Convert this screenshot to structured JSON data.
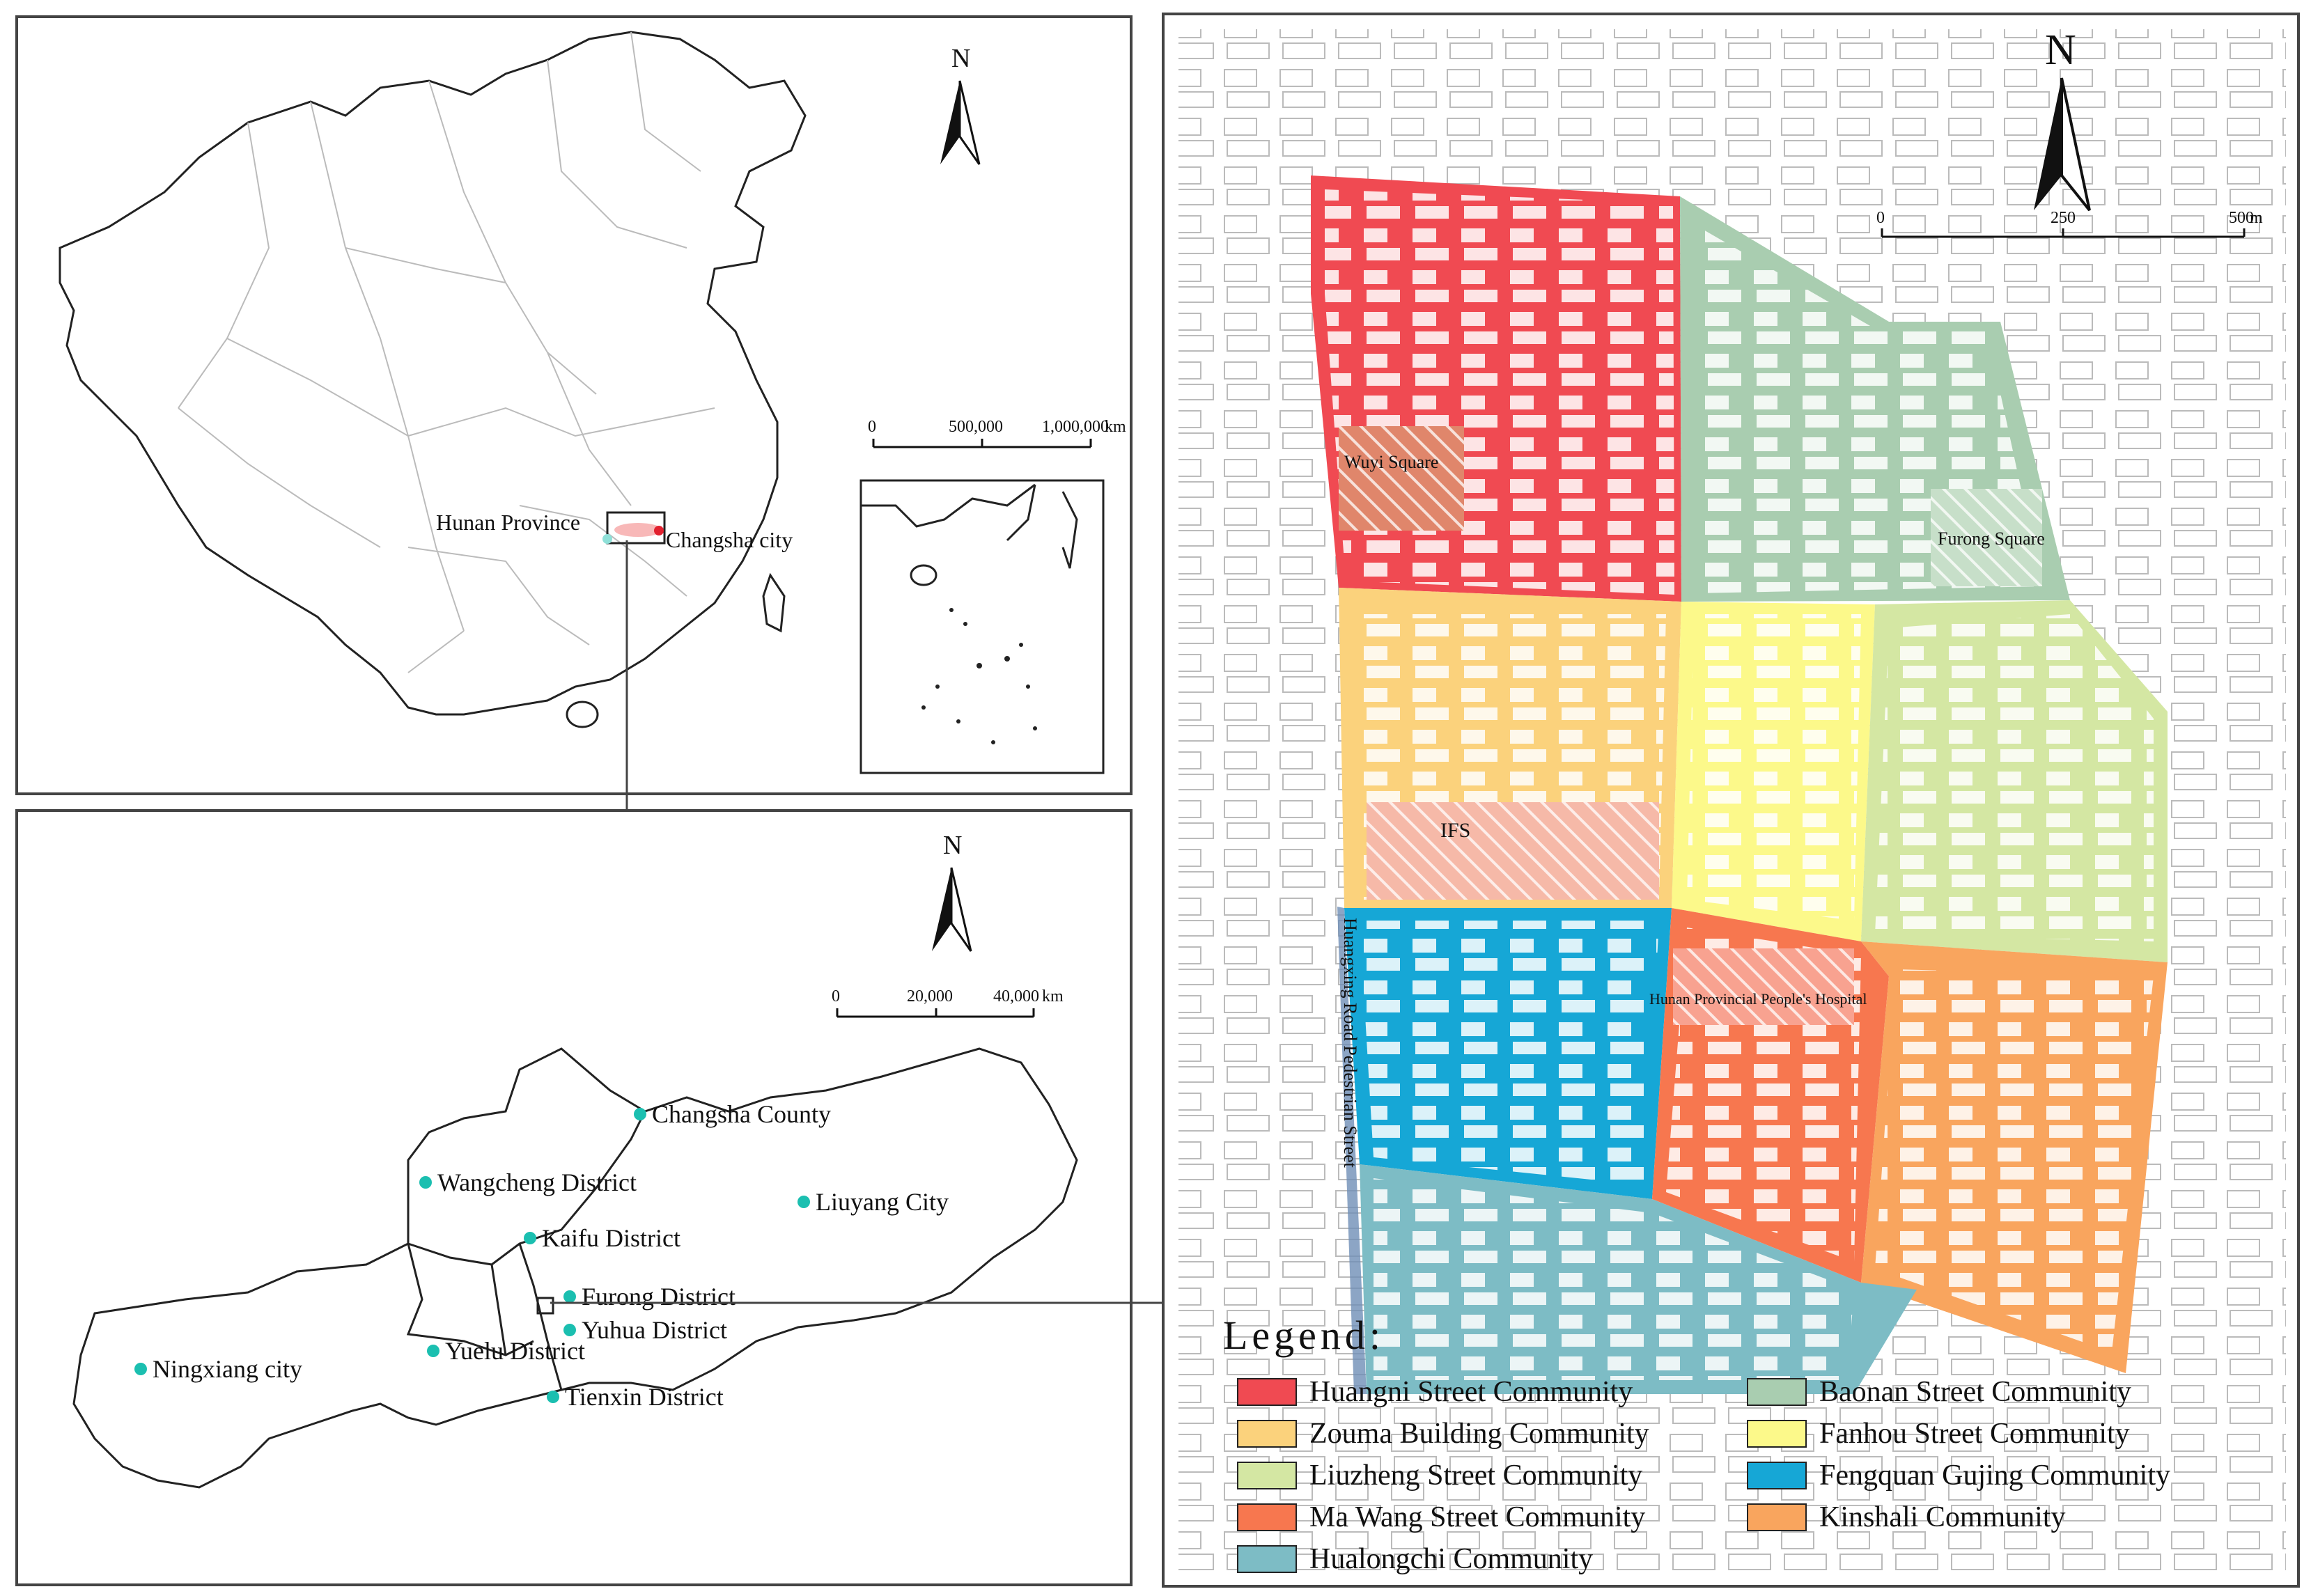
{
  "north_symbol": "N",
  "panel_china": {
    "scale_ticks": [
      "0",
      "500,000",
      "1,000,000"
    ],
    "scale_unit": "km",
    "labels": {
      "hunan": "Hunan Province",
      "changsha": "Changsha city"
    }
  },
  "panel_changsha": {
    "scale_ticks": [
      "0",
      "20,000",
      "40,000"
    ],
    "scale_unit": "km",
    "districts": [
      {
        "name": "Changsha County"
      },
      {
        "name": "Wangcheng District"
      },
      {
        "name": "Liuyang City"
      },
      {
        "name": "Kaifu District"
      },
      {
        "name": "Furong District"
      },
      {
        "name": "Yuhua District"
      },
      {
        "name": "Yuelu District"
      },
      {
        "name": "Tienxin District"
      },
      {
        "name": "Ningxiang city"
      }
    ],
    "marker_color": "#1bbfb0"
  },
  "panel_study": {
    "scale_ticks": [
      "0",
      "250",
      "500"
    ],
    "scale_unit": "m",
    "landmarks": {
      "wuyi": "Wuyi Square",
      "furong": "Furong Square",
      "ifs": "IFS",
      "hospital": "Hunan Provincial People's Hospital",
      "road": "Huangxing Road Pedestrian Street"
    },
    "legend": {
      "title": "Legend:",
      "items": [
        {
          "label": "Huangni Street Community",
          "color": "#f04a52"
        },
        {
          "label": "Baonan Street Community",
          "color": "#a9cdb0"
        },
        {
          "label": "Zouma Building Community",
          "color": "#fbd27c"
        },
        {
          "label": "Fanhou Street Community",
          "color": "#fcf98a"
        },
        {
          "label": "Liuzheng Street Community",
          "color": "#d4e7a3"
        },
        {
          "label": "Fengquan Gujing Community",
          "color": "#16a7d6"
        },
        {
          "label": "Ma Wang Street Community",
          "color": "#f7774f"
        },
        {
          "label": "Kinshali Community",
          "color": "#f9a55e"
        },
        {
          "label": "Hualongchi Community",
          "color": "#7dbcc5"
        }
      ]
    }
  }
}
